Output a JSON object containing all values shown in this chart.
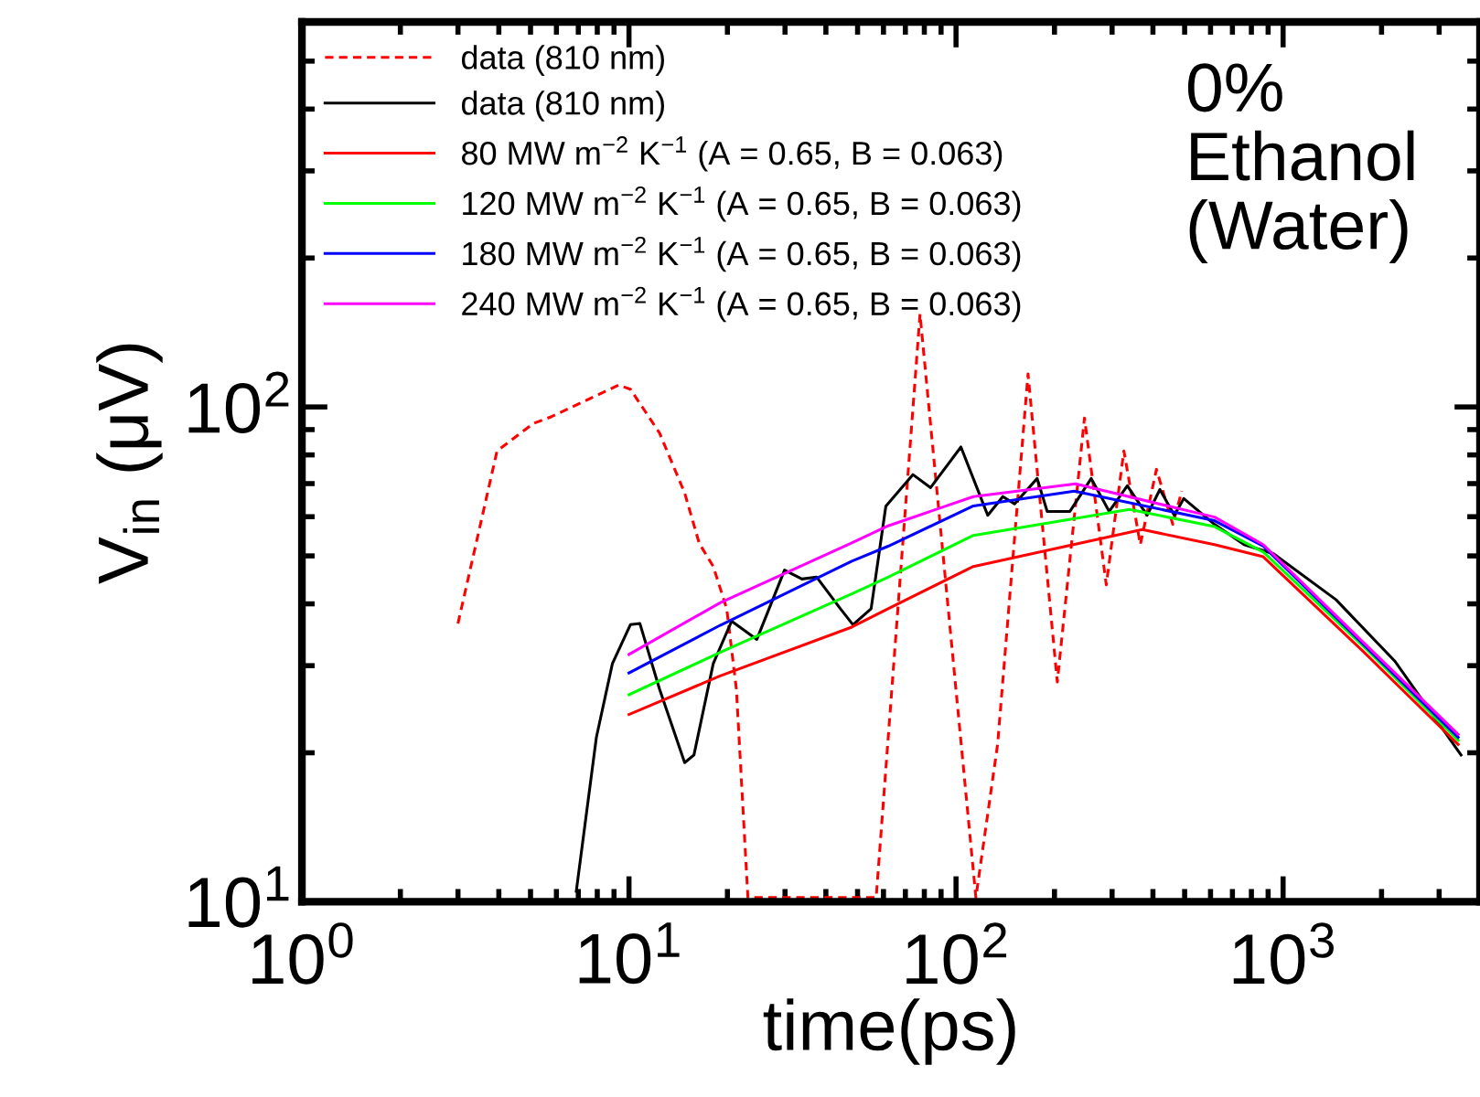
{
  "chart_data": {
    "type": "line",
    "xlabel": "time(ps)",
    "ylabel": "V$_{in}$ (μV)",
    "log": "xy",
    "grid": false,
    "legend": "top left",
    "marker": "none",
    "xlim": [
      1,
      4000
    ],
    "ylim": [
      10,
      600
    ],
    "xticks": [
      {
        "value": 1,
        "label": "10$^{0}$"
      },
      {
        "value": 10,
        "label": "10$^{1}$"
      },
      {
        "value": 100,
        "label": "10$^{2}$"
      },
      {
        "value": 1000,
        "label": "10$^{3}$"
      }
    ],
    "yticks": [
      {
        "value": 10,
        "label": "10$^{1}$"
      },
      {
        "value": 100,
        "label": "10$^{2}$"
      }
    ],
    "annotations": [
      "0%\nEthanol\n(Water)"
    ],
    "series": [
      {
        "name": "data (810 nm)",
        "color": "#ff0000",
        "line_style": "dashed",
        "x": [
          3.0,
          3.95,
          5.1,
          5.8,
          9.3,
          10.1,
          12.4,
          14.8,
          16.4,
          18.1,
          19.9,
          21.3,
          23.1,
          57,
          77.6,
          115,
          134,
          166,
          204,
          247,
          288,
          326,
          366,
          410,
          460,
          490
        ],
        "values": [
          36.5,
          81.5,
          92.6,
          95.6,
          110.7,
          108.6,
          88.6,
          67,
          53,
          47.6,
          39.1,
          26.9,
          10.2,
          10.2,
          154,
          10.2,
          20.8,
          116.6,
          27.8,
          95,
          43.7,
          81.5,
          52.7,
          74.8,
          57.9,
          67.6
        ]
      },
      {
        "name": "data (810 nm)",
        "color": "#000000",
        "line_style": "solid",
        "x": [
          6.9,
          7.95,
          8.9,
          10.1,
          10.8,
          12.4,
          14.8,
          15.8,
          18.1,
          20.6,
          24.6,
          29.9,
          33.8,
          37.5,
          44.3,
          48.4,
          55,
          61,
          73.8,
          83.6,
          103.5,
          125,
          139,
          151,
          177,
          190,
          223,
          259,
          294,
          334,
          384,
          420,
          465,
          497,
          617,
          760,
          935,
          1450,
          2200,
          3500
        ],
        "values": [
          10.5,
          21.5,
          30.3,
          36.3,
          36.5,
          26.9,
          19.1,
          19.8,
          30.3,
          36.9,
          33.9,
          46.8,
          44.9,
          45.3,
          39.1,
          36.3,
          39.1,
          63,
          73,
          68.7,
          83,
          60.4,
          65.9,
          63.7,
          71.7,
          61.5,
          61.5,
          71.7,
          61.5,
          69.3,
          60.4,
          68.1,
          60.4,
          65.3,
          57.9,
          52.7,
          50.5,
          40.8,
          30.6,
          19.8
        ]
      },
      {
        "name": "80 MW m$^{−2}$ K$^{−1}$ (A = 0.65, B = 0.063)",
        "color": "#ff0000",
        "line_style": "solid",
        "x": [
          10,
          19,
          48,
          62,
          113,
          371,
          617,
          870,
          1770,
          3430
        ],
        "values": [
          23.9,
          28.6,
          35.9,
          39.1,
          47.6,
          56.5,
          52.7,
          49.8,
          31.9,
          20.8
        ]
      },
      {
        "name": "120 MW m$^{−2}$ K$^{−1}$ (A = 0.65, B = 0.063)",
        "color": "#00ff00",
        "line_style": "solid",
        "x": [
          10,
          19,
          48,
          62,
          113,
          339,
          617,
          870,
          1770,
          3430
        ],
        "values": [
          26.2,
          31.9,
          41.9,
          45.3,
          55.0,
          62.1,
          57.3,
          50.9,
          32.7,
          21.2
        ]
      },
      {
        "name": "180 MW m$^{−2}$ K$^{−1}$ (A = 0.65, B = 0.063)",
        "color": "#0000ff",
        "line_style": "solid",
        "x": [
          10,
          19,
          48,
          62,
          113,
          230,
          617,
          870,
          1770,
          3430
        ],
        "values": [
          29.0,
          36.2,
          48.8,
          52.3,
          63.1,
          67.6,
          58.9,
          52.3,
          33.0,
          21.5
        ]
      },
      {
        "name": "240 MW m$^{−2}$ K$^{−1}$ (A = 0.65, B = 0.063)",
        "color": "#ff00ff",
        "line_style": "solid",
        "x": [
          10,
          19,
          48,
          62,
          113,
          232,
          617,
          870,
          1770,
          3430
        ],
        "values": [
          31.6,
          40.2,
          53.1,
          57.5,
          65.9,
          69.9,
          59.9,
          52.7,
          33.3,
          21.8
        ]
      }
    ]
  }
}
